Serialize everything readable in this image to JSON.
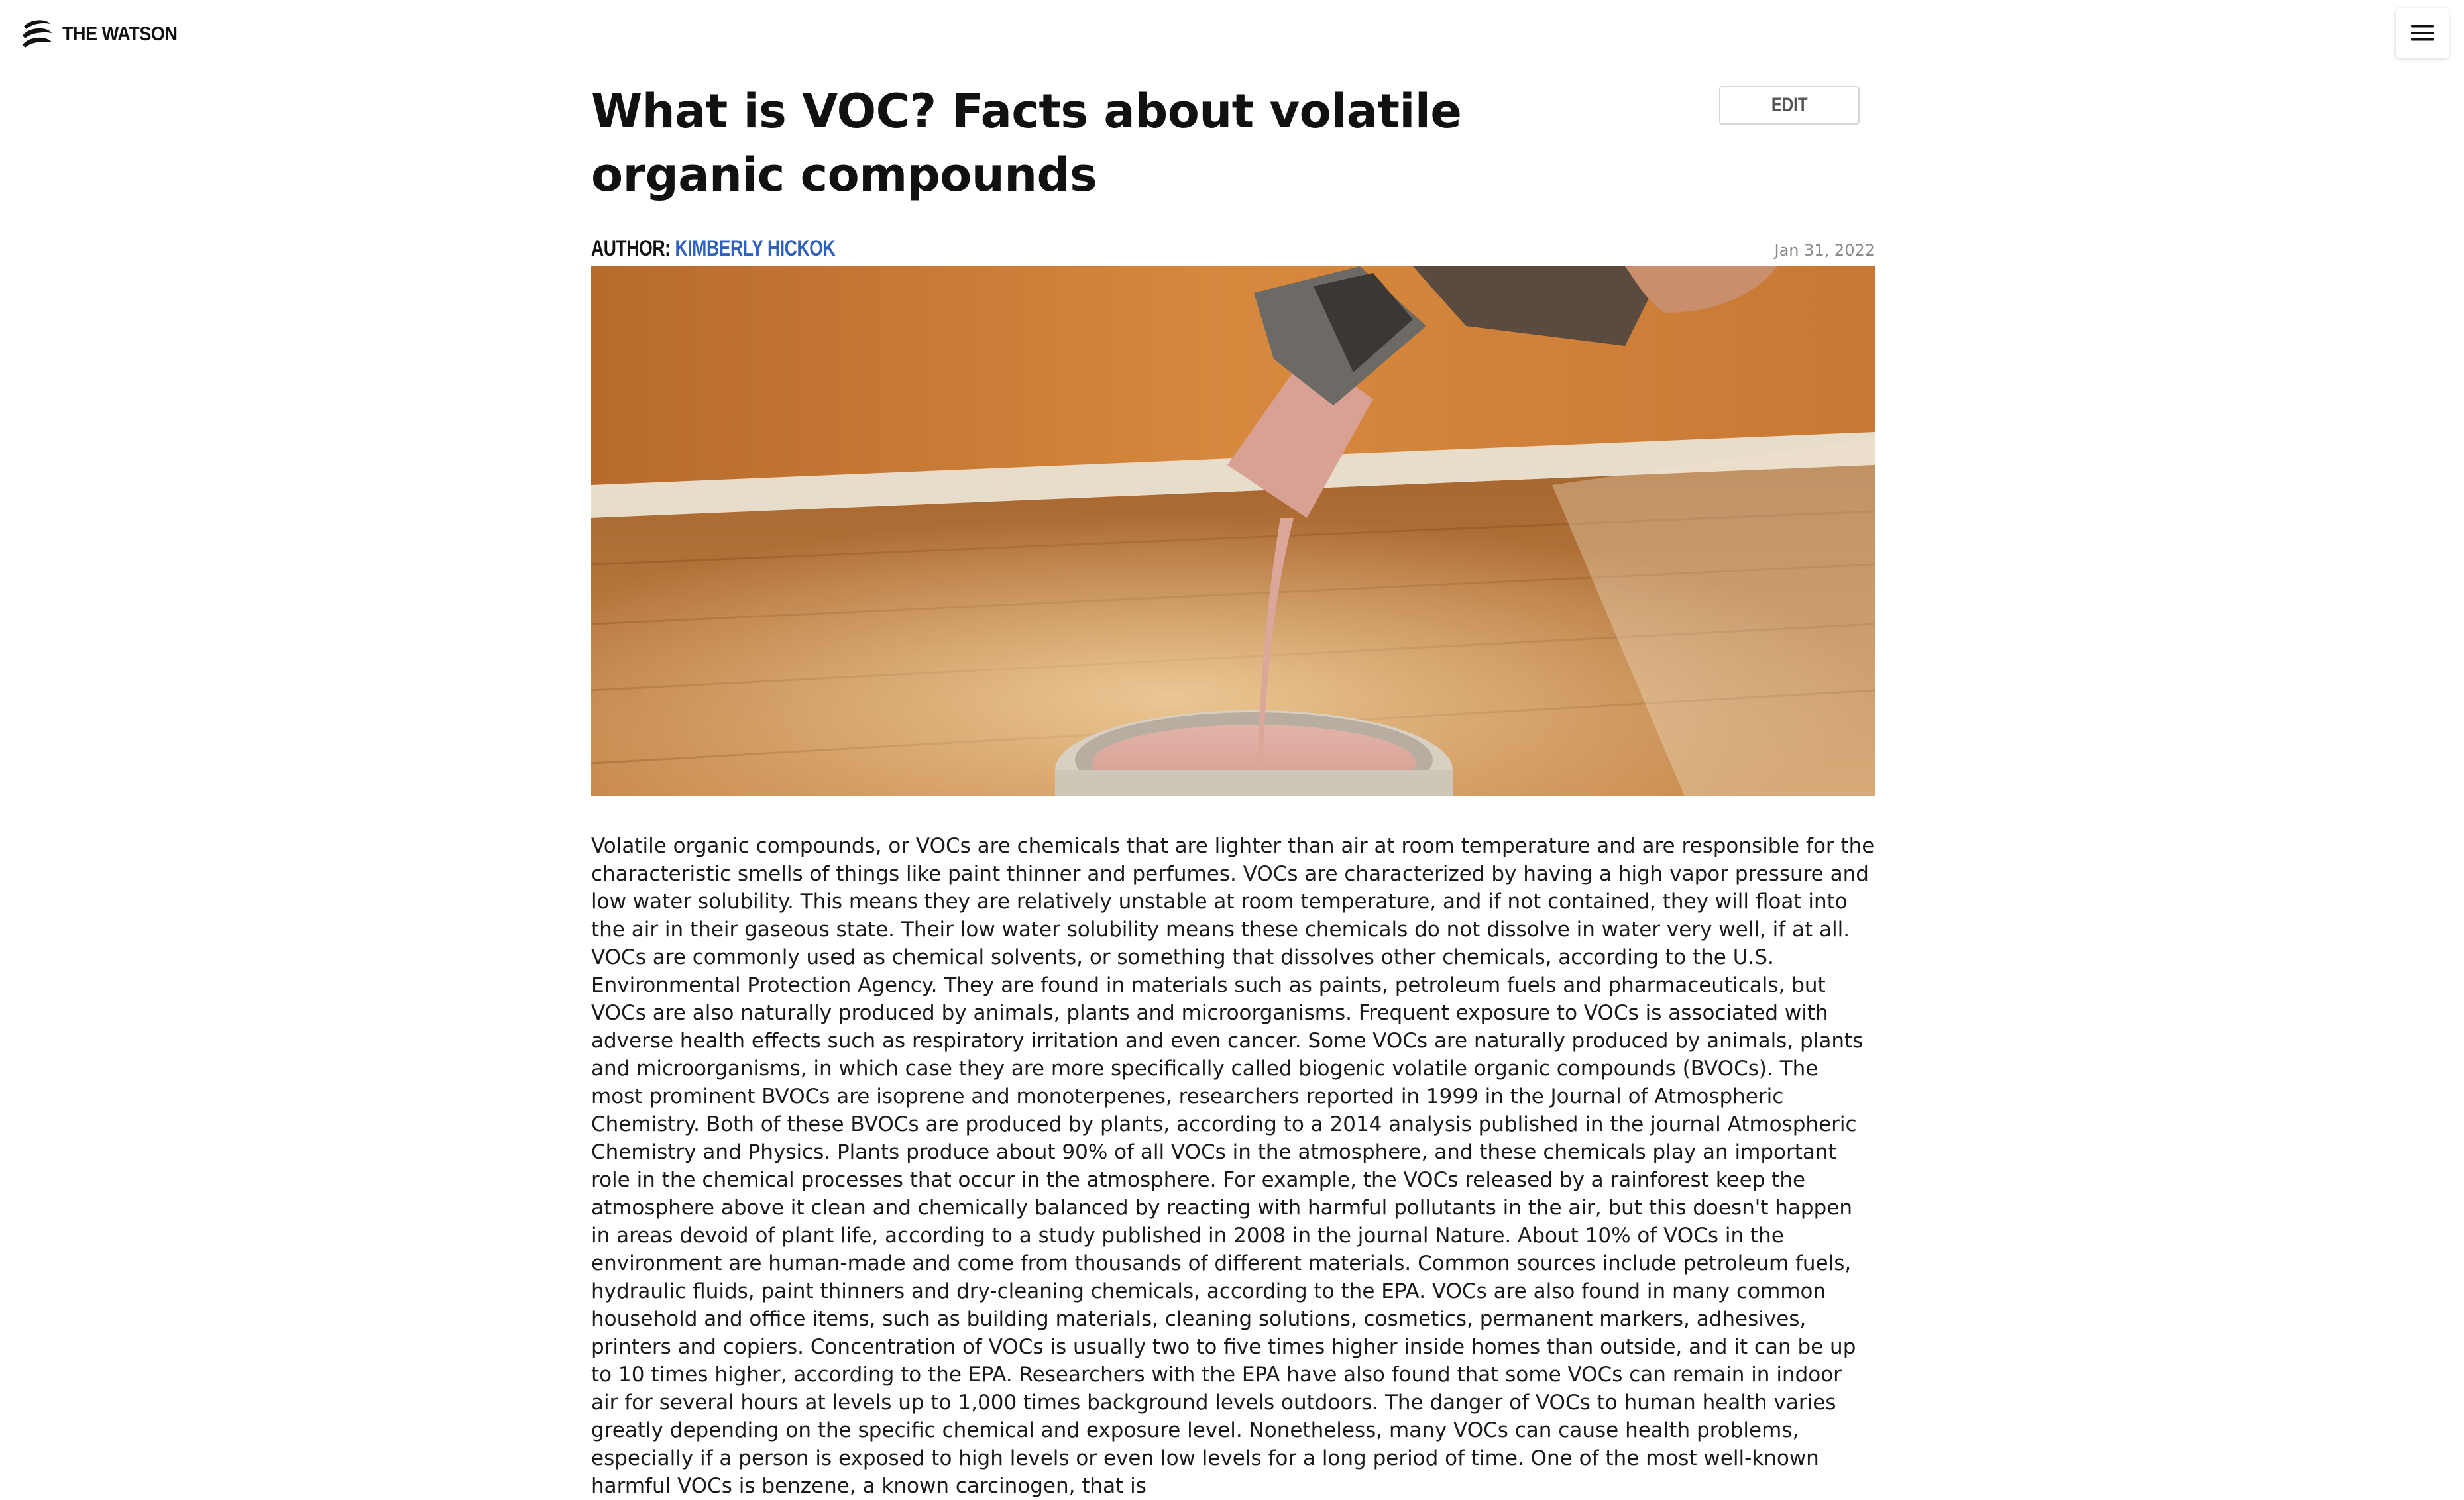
{
  "site": {
    "logo_text": "THE WATSON",
    "logo_icon": "watson-logo-icon",
    "menu_icon": "hamburger-menu-icon"
  },
  "article": {
    "title": "What is VOC? Facts about volatile organic compounds",
    "edit_label": "EDIT",
    "author_label": "AUTHOR:",
    "author_name": "KIMBERLY HICKOK",
    "date": "Jan 31, 2022",
    "hero_image": "paint-brush-dripping-into-can-photo",
    "body": "Volatile organic compounds, or VOCs are chemicals that are lighter than air at room temperature and are responsible for the characteristic smells of things like paint thinner and perfumes. VOCs are characterized by having a high vapor pressure and low water solubility. This means they are relatively unstable at room temperature, and if not contained, they will float into the air in their gaseous state. Their low water solubility means these chemicals do not dissolve in water very well, if at all. VOCs are commonly used as chemical solvents, or something that dissolves other chemicals, according to the U.S. Environmental Protection Agency. They are found in materials such as paints, petroleum fuels and pharmaceuticals, but VOCs are also naturally produced by animals, plants and microorganisms. Frequent exposure to VOCs is associated with adverse health effects such as respiratory irritation and even cancer. Some VOCs are naturally produced by animals, plants and microorganisms, in which case they are more specifically called biogenic volatile organic compounds (BVOCs). The most prominent BVOCs are isoprene and monoterpenes, researchers reported in 1999 in the Journal of Atmospheric Chemistry. Both of these BVOCs are produced by plants, according to a 2014 analysis published in the journal Atmospheric Chemistry and Physics. Plants produce about 90% of all VOCs in the atmosphere, and these chemicals play an important role in the chemical processes that occur in the atmosphere. For example, the VOCs released by a rainforest keep the atmosphere above it clean and chemically balanced by reacting with harmful pollutants in the air, but this doesn't happen in areas devoid of plant life, according to a study published in 2008 in the journal Nature. About 10% of VOCs in the environment are human-made and come from thousands of different materials. Common sources include petroleum fuels, hydraulic fluids, paint thinners and dry-cleaning chemicals, according to the EPA. VOCs are also found in many common household and office items, such as building materials, cleaning solutions, cosmetics, permanent markers, adhesives, printers and copiers. Concentration of VOCs is usually two to five times higher inside homes than outside, and it can be up to 10 times higher, according to the EPA. Researchers with the EPA have also found that some VOCs can remain in indoor air for several hours at levels up to 1,000 times background levels outdoors. The danger of VOCs to human health varies greatly depending on the specific chemical and exposure level. Nonetheless, many VOCs can cause health problems, especially if a person is exposed to high levels or even low levels for a long period of time. One of the most well-known harmful VOCs is benzene, a known carcinogen, that is"
  },
  "colors": {
    "author_link": "#2f5fbf",
    "date_text": "#8a8a8a",
    "edit_border": "#d6d6d6"
  }
}
